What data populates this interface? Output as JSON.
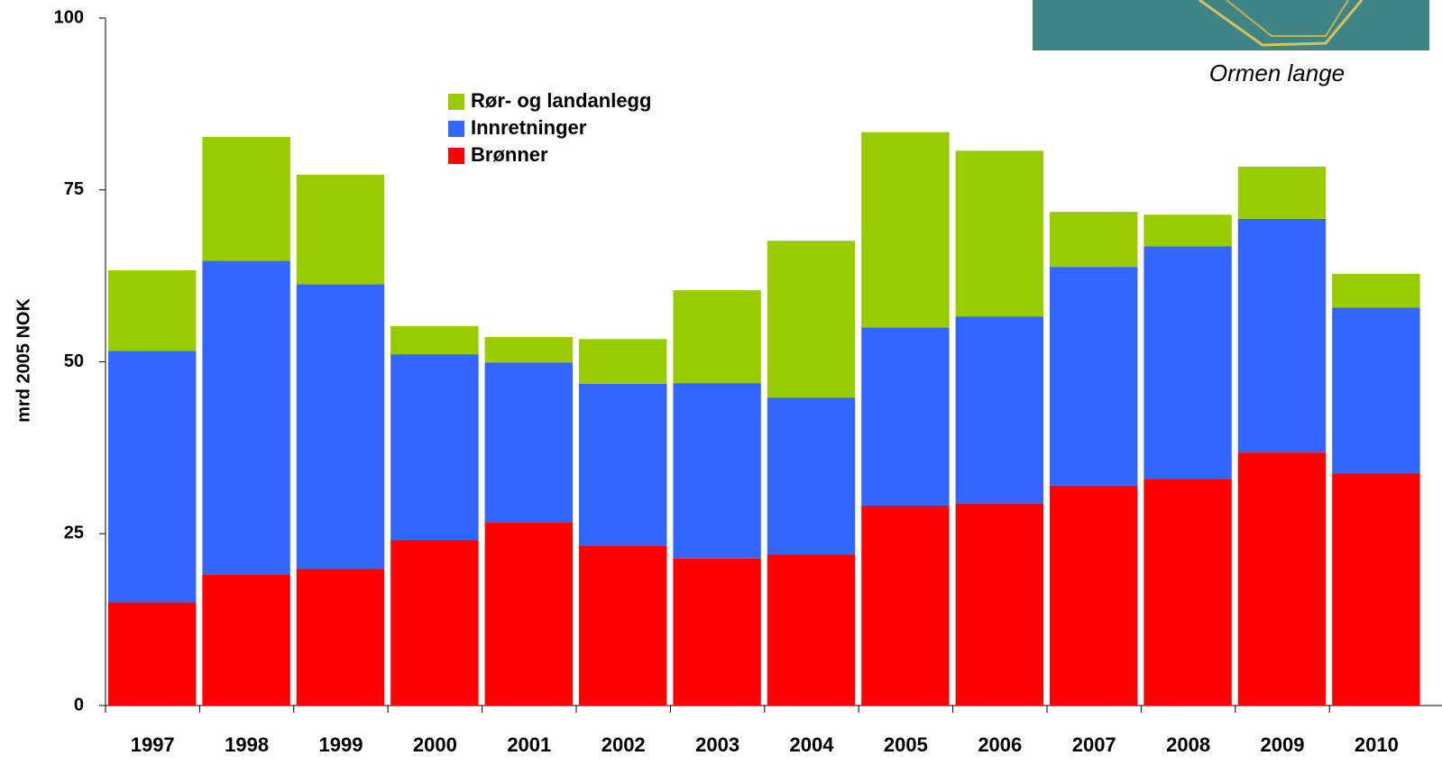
{
  "chart_data": {
    "type": "stacked_bar",
    "y_label": "mrd 2005 NOK",
    "image_caption": "Ormen lange",
    "categories": [
      "1997",
      "1998",
      "1999",
      "2000",
      "2001",
      "2002",
      "2003",
      "2004",
      "2005",
      "2006",
      "2007",
      "2008",
      "2009",
      "2010"
    ],
    "series": [
      {
        "name": "Brønner",
        "color": "#ff0000",
        "values": [
          15.0,
          19.0,
          19.9,
          24.1,
          26.6,
          23.2,
          21.4,
          22.0,
          29.1,
          29.4,
          32.0,
          33.0,
          36.8,
          33.8
        ]
      },
      {
        "name": "Innretninger",
        "color": "#3366ff",
        "values": [
          36.6,
          45.7,
          41.4,
          27.0,
          23.3,
          23.6,
          25.5,
          22.8,
          25.9,
          27.2,
          31.8,
          33.8,
          34.0,
          24.1
        ]
      },
      {
        "name": "Rør- og landanlegg",
        "color": "#99cc00",
        "values": [
          11.7,
          18.0,
          15.9,
          4.1,
          3.7,
          6.5,
          13.5,
          22.8,
          28.4,
          24.1,
          8.0,
          4.6,
          7.6,
          4.9
        ]
      }
    ],
    "ylim": [
      0,
      100
    ],
    "yticks": [
      0,
      25,
      50,
      75,
      100
    ],
    "grid": false
  }
}
